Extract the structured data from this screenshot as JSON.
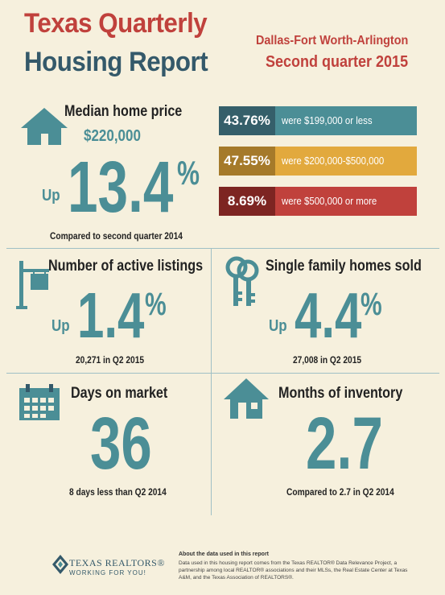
{
  "header": {
    "title_line1": "Texas Quarterly",
    "title_line2": "Housing Report",
    "region": "Dallas-Fort Worth-Arlington",
    "period": "Second quarter 2015"
  },
  "median_price": {
    "title": "Median home price",
    "value": "$220,000",
    "direction": "Up",
    "change": "13.4",
    "unit": "%",
    "note": "Compared to second quarter 2014"
  },
  "price_bands": [
    {
      "pct": "43.76%",
      "label": "were $199,000 or less",
      "color_dark": "#355f6a",
      "color": "#4b8e96"
    },
    {
      "pct": "47.55%",
      "label": "were $200,000-$500,000",
      "color_dark": "#a57a2a",
      "color": "#e2a93d"
    },
    {
      "pct": "8.69%",
      "label": "were $500,000 or more",
      "color_dark": "#7d2522",
      "color": "#c0413c"
    }
  ],
  "active_listings": {
    "title": "Number of active listings",
    "direction": "Up",
    "change": "1.4",
    "unit": "%",
    "note": "20,271 in Q2 2015"
  },
  "homes_sold": {
    "title": "Single family homes sold",
    "direction": "Up",
    "change": "4.4",
    "unit": "%",
    "note": "27,008 in Q2 2015"
  },
  "days_on_market": {
    "title": "Days on market",
    "value": "36",
    "note": "8 days less than Q2 2014"
  },
  "months_inventory": {
    "title": "Months of inventory",
    "value": "2.7",
    "note": "Compared to 2.7 in Q2 2014"
  },
  "footer": {
    "logo_line1": "TEXAS REALTORS®",
    "logo_line2": "WORKING FOR YOU!",
    "about_title": "About the data used in this report",
    "about_body": "Data used in this housing report comes from the Texas REALTOR® Data Relevance Project, a partnership among local REALTOR® associations and their MLSs, the Real Estate Center at Texas A&M, and the Texas Association of REALTORS®."
  }
}
